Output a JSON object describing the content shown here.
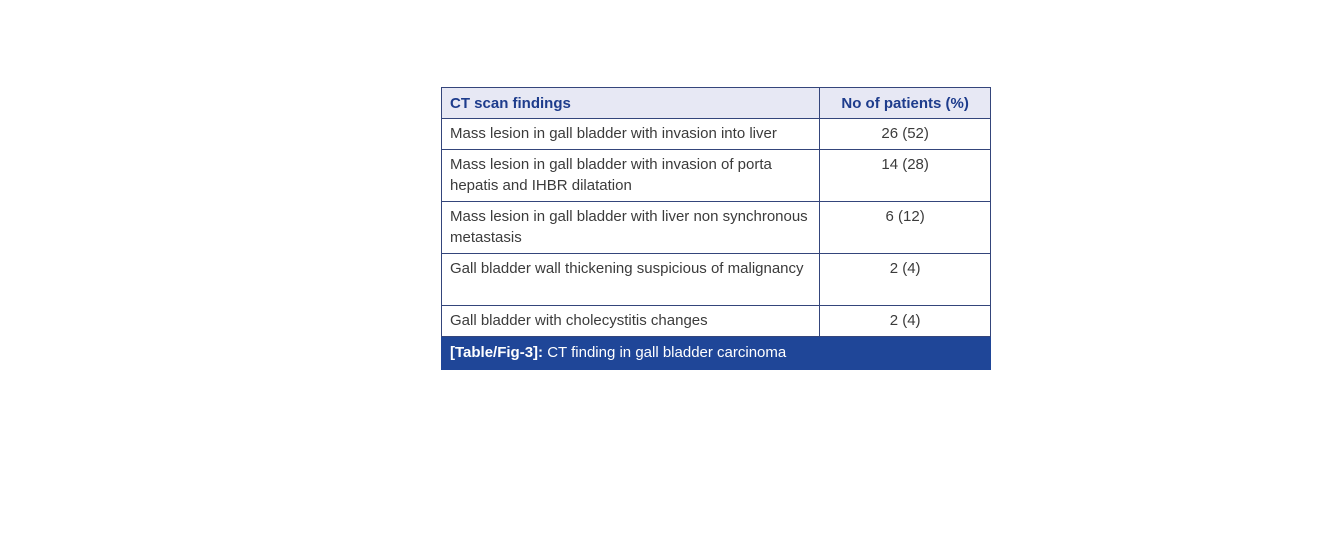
{
  "table": {
    "headers": {
      "findings": "CT scan findings",
      "patients": "No of patients (%)"
    },
    "rows": [
      {
        "finding": "Mass lesion in gall bladder with invasion into liver",
        "value": "26 (52)"
      },
      {
        "finding": "Mass lesion in gall bladder with invasion of porta hepatis and IHBR dilatation",
        "value": "14 (28)"
      },
      {
        "finding": "Mass lesion in gall bladder with liver non synchronous metastasis",
        "value": "6 (12)"
      },
      {
        "finding": "Gall bladder wall thickening suspicious of malignancy",
        "value": "2 (4)"
      },
      {
        "finding": "Gall bladder with cholecystitis changes",
        "value": "2 (4)"
      }
    ],
    "caption": {
      "label": "[Table/Fig-3]:",
      "text": " CT finding in gall bladder carcinoma"
    },
    "colors": {
      "header_bg": "#e7e8f4",
      "header_text": "#1e3c8c",
      "body_text": "#3b3b3b",
      "border": "#34457b",
      "caption_bg": "#1f4698",
      "caption_text": "#ffffff"
    }
  }
}
